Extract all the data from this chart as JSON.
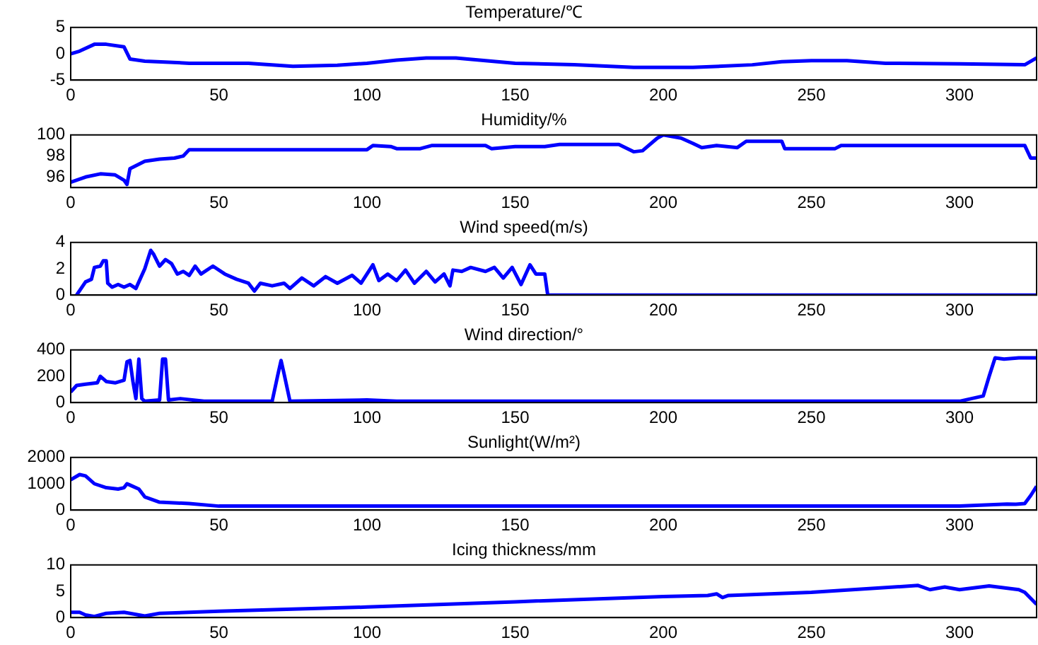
{
  "chart_data": [
    {
      "type": "line",
      "title": "Temperature/℃",
      "color": "#0000ff",
      "xlim": [
        0,
        326
      ],
      "xticks": [
        0,
        50,
        100,
        150,
        200,
        250,
        300
      ],
      "ylim": [
        -5,
        5
      ],
      "yticks": [
        -5,
        0,
        5
      ],
      "x": [
        0,
        3,
        8,
        12,
        18,
        20,
        25,
        40,
        60,
        75,
        90,
        100,
        110,
        120,
        130,
        140,
        150,
        170,
        190,
        210,
        230,
        240,
        250,
        262,
        275,
        300,
        322,
        326
      ],
      "values": [
        0,
        0.5,
        1.8,
        1.8,
        1.3,
        -1,
        -1.4,
        -1.8,
        -1.8,
        -2.4,
        -2.2,
        -1.8,
        -1.2,
        -0.8,
        -0.8,
        -1.3,
        -1.8,
        -2.1,
        -2.6,
        -2.6,
        -2.1,
        -1.5,
        -1.3,
        -1.3,
        -1.8,
        -1.9,
        -2.1,
        -0.8
      ]
    },
    {
      "type": "line",
      "title": "Humidity/%",
      "color": "#0000ff",
      "xlim": [
        0,
        326
      ],
      "xticks": [
        0,
        50,
        100,
        150,
        200,
        250,
        300
      ],
      "ylim": [
        95,
        100
      ],
      "yticks": [
        96,
        98,
        100
      ],
      "x": [
        0,
        5,
        10,
        15,
        18,
        19,
        20,
        25,
        30,
        35,
        38,
        40,
        100,
        102,
        108,
        110,
        118,
        122,
        140,
        142,
        150,
        160,
        165,
        185,
        190,
        193,
        198,
        200,
        206,
        210,
        213,
        218,
        225,
        228,
        240,
        241,
        258,
        260,
        322,
        324,
        326
      ],
      "values": [
        95.5,
        96,
        96.3,
        96.2,
        95.7,
        95.3,
        96.8,
        97.5,
        97.7,
        97.8,
        98,
        98.6,
        98.6,
        99,
        98.9,
        98.7,
        98.7,
        99,
        99,
        98.7,
        98.9,
        98.9,
        99.1,
        99.1,
        98.4,
        98.5,
        99.7,
        100,
        99.7,
        99.2,
        98.8,
        99,
        98.8,
        99.4,
        99.4,
        98.7,
        98.7,
        99,
        99,
        97.8,
        97.8
      ]
    },
    {
      "type": "line",
      "title": "Wind speed(m/s)",
      "color": "#0000ff",
      "xlim": [
        0,
        326
      ],
      "xticks": [
        0,
        50,
        100,
        150,
        200,
        250,
        300
      ],
      "ylim": [
        0,
        4
      ],
      "yticks": [
        0,
        2,
        4
      ],
      "x": [
        2,
        5,
        7,
        8,
        10,
        11,
        12,
        12.5,
        14,
        16,
        18,
        20,
        22,
        25,
        27,
        28,
        30,
        32,
        34,
        36,
        38,
        40,
        42,
        44,
        48,
        52,
        56,
        60,
        62,
        64,
        68,
        72,
        74,
        78,
        82,
        86,
        90,
        95,
        98,
        100,
        102,
        104,
        107,
        110,
        113,
        116,
        120,
        123,
        126,
        128,
        129,
        132,
        135,
        140,
        143,
        146,
        149,
        152,
        155,
        157,
        160,
        161,
        326
      ],
      "values": [
        0,
        1,
        1.2,
        2.1,
        2.2,
        2.6,
        2.6,
        0.9,
        0.6,
        0.8,
        0.6,
        0.8,
        0.5,
        2,
        3.4,
        3.1,
        2.2,
        2.7,
        2.4,
        1.6,
        1.8,
        1.5,
        2.2,
        1.6,
        2.2,
        1.6,
        1.2,
        0.9,
        0.3,
        0.9,
        0.7,
        0.9,
        0.5,
        1.3,
        0.7,
        1.4,
        0.9,
        1.5,
        0.9,
        1.6,
        2.3,
        1.1,
        1.6,
        1.1,
        1.9,
        0.9,
        1.8,
        1,
        1.6,
        0.7,
        1.9,
        1.8,
        2.1,
        1.8,
        2.1,
        1.3,
        2.1,
        0.8,
        2.3,
        1.6,
        1.6,
        0,
        0
      ]
    },
    {
      "type": "line",
      "title": "Wind direction/°",
      "color": "#0000ff",
      "xlim": [
        0,
        326
      ],
      "xticks": [
        0,
        50,
        100,
        150,
        200,
        250,
        300
      ],
      "ylim": [
        0,
        400
      ],
      "yticks": [
        0,
        200,
        400
      ],
      "x": [
        0,
        2,
        5,
        9,
        10,
        12,
        15,
        18,
        19,
        20,
        21,
        22,
        23,
        24,
        25,
        30,
        31,
        32,
        33,
        37,
        45,
        68,
        70,
        71,
        72,
        74,
        100,
        110,
        300,
        308,
        310,
        312,
        315,
        320,
        326
      ],
      "values": [
        80,
        130,
        140,
        150,
        200,
        160,
        150,
        170,
        310,
        320,
        160,
        30,
        330,
        30,
        10,
        20,
        330,
        330,
        20,
        30,
        10,
        10,
        220,
        320,
        220,
        10,
        20,
        10,
        10,
        50,
        200,
        340,
        330,
        340,
        340
      ]
    },
    {
      "type": "line",
      "title": "Sunlight(W/m²)",
      "color": "#0000ff",
      "xlim": [
        0,
        326
      ],
      "xticks": [
        0,
        50,
        100,
        150,
        200,
        250,
        300
      ],
      "ylim": [
        0,
        2000
      ],
      "yticks": [
        0,
        1000,
        2000
      ],
      "x": [
        0,
        3,
        5,
        8,
        12,
        16,
        18,
        19,
        20,
        23,
        25,
        30,
        40,
        50,
        150,
        300,
        316,
        319,
        322,
        324,
        326
      ],
      "values": [
        1150,
        1350,
        1300,
        1000,
        850,
        800,
        850,
        1000,
        950,
        800,
        500,
        300,
        250,
        150,
        150,
        150,
        230,
        220,
        250,
        550,
        900
      ]
    },
    {
      "type": "line",
      "title": "Icing thickness/mm",
      "color": "#0000ff",
      "xlim": [
        0,
        326
      ],
      "xticks": [
        0,
        50,
        100,
        150,
        200,
        250,
        300
      ],
      "ylim": [
        0,
        10
      ],
      "yticks": [
        0,
        5,
        10
      ],
      "x": [
        0,
        3,
        5,
        8,
        12,
        18,
        22,
        25,
        30,
        50,
        100,
        150,
        200,
        215,
        218,
        220,
        222,
        250,
        286,
        290,
        295,
        300,
        310,
        320,
        322,
        326
      ],
      "values": [
        1,
        1,
        0.5,
        0.2,
        0.8,
        1,
        0.6,
        0.3,
        0.8,
        1.2,
        2,
        3,
        4,
        4.2,
        4.5,
        3.8,
        4.2,
        4.8,
        6.1,
        5.3,
        5.8,
        5.3,
        6,
        5.3,
        4.8,
        2.5
      ]
    }
  ]
}
